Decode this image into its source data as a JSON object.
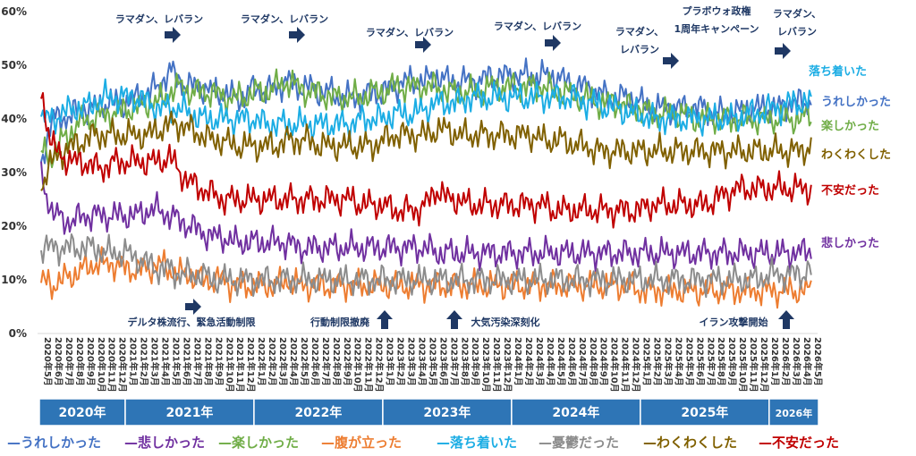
{
  "chart_data": {
    "type": "line",
    "y_ticks": [
      "0%",
      "10%",
      "20%",
      "30%",
      "40%",
      "50%",
      "60%"
    ],
    "ylim": [
      0,
      60
    ],
    "grid": false,
    "x_start_label": "2020年5月",
    "x_end_label": "2026年5月",
    "x_tick_labels": [
      "2020年5月",
      "2020年6月",
      "2020年7月",
      "2020年8月",
      "2020年9月",
      "2020年10月",
      "2020年11月",
      "2020年12月",
      "2021年1月",
      "2021年2月",
      "2021年3月",
      "2021年4月",
      "2021年5月",
      "2021年6月",
      "2021年7月",
      "2021年8月",
      "2021年9月",
      "2021年10月",
      "2021年11月",
      "2021年12月",
      "2022年1月",
      "2022年2月",
      "2022年3月",
      "2022年4月",
      "2022年5月",
      "2022年6月",
      "2022年7月",
      "2022年8月",
      "2022年9月",
      "2022年10月",
      "2022年11月",
      "2022年12月",
      "2023年1月",
      "2023年2月",
      "2023年3月",
      "2023年4月",
      "2023年5月",
      "2023年6月",
      "2023年7月",
      "2023年8月",
      "2023年9月",
      "2023年10月",
      "2023年11月",
      "2023年12月",
      "2024年1月",
      "2024年2月",
      "2024年3月",
      "2024年4月",
      "2024年5月",
      "2024年6月",
      "2024年7月",
      "2024年8月",
      "2024年9月",
      "2024年10月",
      "2024年11月",
      "2024年12月",
      "2025年1月",
      "2025年2月",
      "2025年3月",
      "2025年4月",
      "2025年5月",
      "2025年6月",
      "2025年7月",
      "2025年8月",
      "2025年9月",
      "2025年10月",
      "2025年11月",
      "2025年12月",
      "2026年1月",
      "2026年2月",
      "2026年3月",
      "2026年4月",
      "2026年5月"
    ],
    "year_bands": [
      {
        "label": "2020年",
        "from": 0,
        "to": 8
      },
      {
        "label": "2021年",
        "from": 8,
        "to": 20
      },
      {
        "label": "2022年",
        "from": 20,
        "to": 32
      },
      {
        "label": "2023年",
        "from": 32,
        "to": 44
      },
      {
        "label": "2024年",
        "from": 44,
        "to": 56
      },
      {
        "label": "2025年",
        "from": 56,
        "to": 68
      },
      {
        "label": "2026年",
        "from": 68,
        "to": 72.6
      }
    ],
    "series": [
      {
        "name": "うれしかった",
        "color": "#4472C4",
        "values": [
          32,
          40,
          40,
          41,
          42,
          42,
          43,
          43,
          43,
          44,
          45,
          46,
          49,
          47,
          46,
          46,
          45,
          45,
          44,
          44,
          46,
          45,
          46,
          47,
          46,
          46,
          45,
          45,
          44,
          44,
          44,
          45,
          45,
          46,
          47,
          47,
          47,
          48,
          47,
          47,
          47,
          47,
          48,
          48,
          48,
          48,
          48,
          48,
          48,
          47,
          46,
          46,
          45,
          44,
          44,
          44,
          43,
          42,
          42,
          42,
          42,
          42,
          42,
          41,
          41,
          41,
          42,
          42,
          42,
          42,
          43,
          43,
          43
        ]
      },
      {
        "name": "悲しかった",
        "color": "#7030A0",
        "values": [
          29,
          23,
          21,
          21,
          22,
          22,
          22,
          22,
          22,
          22,
          23,
          23,
          22,
          21,
          20,
          19,
          18,
          18,
          17,
          17,
          17,
          17,
          17,
          17,
          16,
          16,
          16,
          16,
          16,
          16,
          16,
          16,
          16,
          16,
          16,
          16,
          16,
          15,
          15,
          15,
          15,
          15,
          15,
          15,
          15,
          15,
          15,
          15,
          15,
          15,
          15,
          15,
          15,
          15,
          15,
          15,
          15,
          15,
          15,
          15,
          15,
          15,
          15,
          15,
          15,
          15,
          15,
          15,
          15,
          15,
          15,
          15,
          16
        ]
      },
      {
        "name": "楽しかった",
        "color": "#70AD47",
        "values": [
          34,
          33,
          36,
          38,
          40,
          40,
          41,
          41,
          42,
          42,
          43,
          43,
          45,
          46,
          45,
          45,
          45,
          44,
          44,
          44,
          45,
          45,
          46,
          47,
          46,
          45,
          45,
          44,
          44,
          44,
          44,
          45,
          45,
          46,
          46,
          46,
          46,
          46,
          45,
          45,
          45,
          45,
          46,
          46,
          46,
          46,
          46,
          46,
          45,
          45,
          44,
          44,
          43,
          43,
          43,
          42,
          42,
          41,
          41,
          41,
          41,
          40,
          40,
          40,
          40,
          40,
          40,
          40,
          40,
          40,
          40,
          40,
          41
        ]
      },
      {
        "name": "腹が立った",
        "color": "#ED7D31",
        "values": [
          10,
          9,
          10,
          11,
          12,
          13,
          13,
          13,
          12,
          12,
          12,
          13,
          12,
          11,
          11,
          10,
          10,
          10,
          9,
          9,
          9,
          9,
          9,
          10,
          9,
          9,
          9,
          9,
          9,
          9,
          9,
          9,
          9,
          9,
          9,
          9,
          9,
          9,
          9,
          9,
          9,
          9,
          9,
          9,
          9,
          9,
          9,
          9,
          9,
          9,
          9,
          9,
          9,
          9,
          9,
          9,
          8,
          8,
          8,
          8,
          8,
          8,
          8,
          8,
          8,
          8,
          8,
          8,
          8,
          8,
          8,
          8,
          8
        ]
      },
      {
        "name": "落ち着いた",
        "color": "#1CADE4",
        "values": [
          40,
          40,
          41,
          42,
          42,
          43,
          44,
          44,
          44,
          44,
          43,
          42,
          42,
          42,
          41,
          40,
          40,
          40,
          40,
          40,
          40,
          39,
          39,
          39,
          39,
          39,
          39,
          39,
          39,
          39,
          40,
          40,
          40,
          41,
          41,
          41,
          42,
          43,
          43,
          43,
          44,
          44,
          44,
          44,
          44,
          44,
          44,
          44,
          44,
          44,
          44,
          43,
          43,
          42,
          42,
          41,
          41,
          40,
          40,
          40,
          40,
          40,
          40,
          40,
          40,
          40,
          41,
          41,
          42,
          42,
          43,
          43,
          43
        ]
      },
      {
        "name": "憂鬱だった",
        "color": "#8C8C8C",
        "values": [
          16,
          16,
          16,
          16,
          16,
          16,
          15,
          15,
          15,
          14,
          13,
          12,
          12,
          11,
          11,
          11,
          10,
          10,
          10,
          10,
          10,
          10,
          10,
          10,
          10,
          10,
          10,
          10,
          10,
          10,
          10,
          10,
          10,
          10,
          10,
          10,
          10,
          10,
          10,
          10,
          10,
          10,
          10,
          10,
          10,
          10,
          10,
          10,
          10,
          10,
          10,
          10,
          10,
          10,
          10,
          10,
          10,
          10,
          10,
          10,
          10,
          10,
          10,
          10,
          10,
          10,
          10,
          10,
          11,
          11,
          11,
          11,
          12
        ]
      },
      {
        "name": "わくわくした",
        "color": "#806000",
        "values": [
          28,
          32,
          34,
          35,
          36,
          37,
          37,
          37,
          37,
          37,
          37,
          38,
          39,
          39,
          38,
          37,
          36,
          36,
          35,
          35,
          35,
          35,
          35,
          36,
          36,
          36,
          35,
          35,
          35,
          35,
          35,
          35,
          36,
          37,
          37,
          37,
          37,
          38,
          38,
          37,
          37,
          37,
          37,
          37,
          37,
          37,
          37,
          36,
          36,
          36,
          35,
          35,
          34,
          34,
          34,
          34,
          34,
          34,
          34,
          34,
          34,
          34,
          34,
          34,
          34,
          34,
          34,
          34,
          34,
          34,
          34,
          34,
          35
        ]
      },
      {
        "name": "不安だった",
        "color": "#C00000",
        "values": [
          45,
          35,
          33,
          32,
          32,
          31,
          31,
          32,
          32,
          32,
          32,
          32,
          33,
          30,
          28,
          27,
          26,
          25,
          25,
          25,
          25,
          25,
          25,
          25,
          25,
          25,
          25,
          25,
          25,
          25,
          24,
          24,
          24,
          23,
          23,
          23,
          24,
          27,
          25,
          25,
          24,
          24,
          24,
          24,
          24,
          24,
          24,
          24,
          23,
          23,
          23,
          23,
          23,
          23,
          23,
          23,
          23,
          24,
          24,
          24,
          24,
          24,
          24,
          25,
          26,
          27,
          27,
          27,
          27,
          27,
          27,
          27,
          27
        ]
      }
    ],
    "event_labels": [
      {
        "lines": [
          "ラマダン、レバラン"
        ]
      },
      {
        "lines": [
          "ラマダン、レバラン"
        ]
      },
      {
        "lines": [
          "ラマダン、レバラン"
        ]
      },
      {
        "lines": [
          "ラマダン、レバラン"
        ]
      },
      {
        "lines": [
          "ラマダン、",
          "レバラン"
        ]
      },
      {
        "lines": [
          "プラボウォ政権",
          "1周年キャンペーン"
        ]
      },
      {
        "lines": [
          "ラマダン、",
          "レバラン"
        ]
      },
      {
        "lines": [
          "デルタ株流行、緊急活動制限"
        ]
      },
      {
        "lines": [
          "行動制限撤廃"
        ]
      },
      {
        "lines": [
          "大気汚染深刻化"
        ]
      },
      {
        "lines": [
          "イラン攻撃開始"
        ]
      }
    ],
    "legend_items": [
      {
        "text": "—うれしかった",
        "color": "#4472C4"
      },
      {
        "text": "—悲しかった",
        "color": "#7030A0"
      },
      {
        "text": "—楽しかった",
        "color": "#70AD47"
      },
      {
        "text": "—腹が立った",
        "color": "#ED7D31"
      },
      {
        "text": "—落ち着いた",
        "color": "#1CADE4"
      },
      {
        "text": "—憂鬱だった",
        "color": "#8C8C8C"
      },
      {
        "text": "—わくわくした",
        "color": "#806000"
      },
      {
        "text": "—不安だった",
        "color": "#C00000"
      }
    ]
  }
}
